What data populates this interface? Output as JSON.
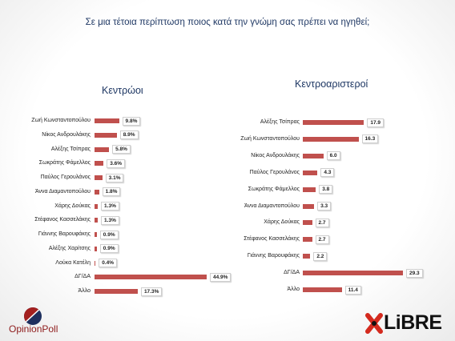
{
  "title": "Σε μια τέτοια περίπτωση ποιος κατά την γνώμη σας πρέπει να ηγηθεί;",
  "colors": {
    "title": "#1f3864",
    "bar": "#c0504d",
    "opinionpoll_red": "#a3201f",
    "opinionpoll_blue": "#1e2f5e",
    "libre_red": "#d42a1e"
  },
  "chart_data": [
    {
      "type": "bar",
      "orientation": "horizontal",
      "title": "Κεντρώοι",
      "categories": [
        "Ζωή Κωνσταντοπούλου",
        "Νίκος Ανδρουλάκης",
        "Αλέξης Τσίπρας",
        "Σωκράτης Φάμελλος",
        "Παύλος Γερουλάνος",
        "Άννα Διαμαντοπούλου",
        "Χάρης Δούκας",
        "Στέφανος Κασσελάκης",
        "Γιάννης Βαρουφάκης",
        "Αλέξης Χαρίτσης",
        "Λούκα Κατέλη",
        "ΔΓ/ΔΑ",
        "Άλλο"
      ],
      "values": [
        9.8,
        8.9,
        5.8,
        3.6,
        3.1,
        1.8,
        1.3,
        1.3,
        0.9,
        0.9,
        0.4,
        44.9,
        17.3
      ],
      "value_suffix": "%",
      "xlim": [
        0,
        45
      ],
      "grid": false,
      "legend": "none"
    },
    {
      "type": "bar",
      "orientation": "horizontal",
      "title": "Κεντροαριστεροί",
      "categories": [
        "Αλέξης Τσίπρας",
        "Ζωή Κωνσταντοπούλου",
        "Νίκος Ανδρουλάκης",
        "Παύλος Γερουλάνος",
        "Σωκράτης Φάμελλος",
        "Άννα Διαμαντοπούλου",
        "Χάρης Δούκας",
        "Στέφανος Κασσελάκης",
        "Γιάννης Βαρουφάκης",
        "ΔΓ/ΔΑ",
        "Άλλο"
      ],
      "values": [
        17.9,
        16.3,
        6.0,
        4.3,
        3.8,
        3.3,
        2.7,
        2.7,
        2.2,
        29.3,
        11.4
      ],
      "value_suffix": "",
      "xlim": [
        0,
        30
      ],
      "grid": false,
      "legend": "none"
    }
  ],
  "logos": {
    "left": {
      "text": "OpinionPoll",
      "icon": "opinionpoll-logo-icon"
    },
    "right": {
      "text": "LiBRE",
      "icon": "libre-logo-icon"
    }
  }
}
